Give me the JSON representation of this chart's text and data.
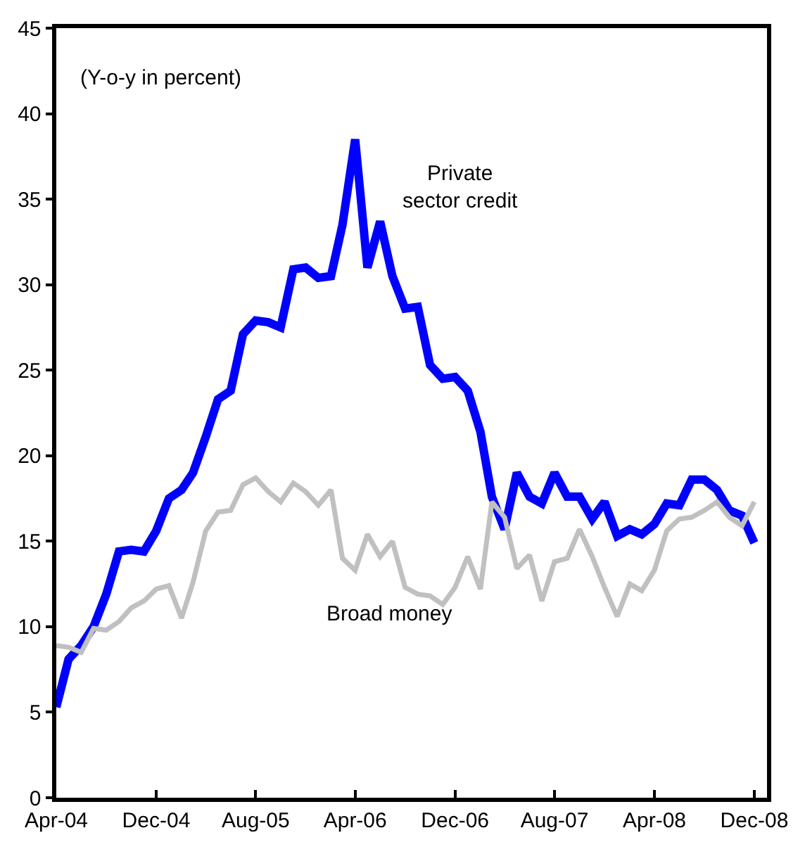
{
  "chart_data": {
    "type": "line",
    "x": [
      "2004-04",
      "2004-05",
      "2004-06",
      "2004-07",
      "2004-08",
      "2004-09",
      "2004-10",
      "2004-11",
      "2004-12",
      "2005-01",
      "2005-02",
      "2005-03",
      "2005-04",
      "2005-05",
      "2005-06",
      "2005-07",
      "2005-08",
      "2005-09",
      "2005-10",
      "2005-11",
      "2005-12",
      "2006-01",
      "2006-02",
      "2006-03",
      "2006-04",
      "2006-05",
      "2006-06",
      "2006-07",
      "2006-08",
      "2006-09",
      "2006-10",
      "2006-11",
      "2006-12",
      "2007-01",
      "2007-02",
      "2007-03",
      "2007-04",
      "2007-05",
      "2007-06",
      "2007-07",
      "2007-08",
      "2007-09",
      "2007-10",
      "2007-11",
      "2007-12",
      "2008-01",
      "2008-02",
      "2008-03",
      "2008-04",
      "2008-05",
      "2008-06",
      "2008-07",
      "2008-08",
      "2008-09",
      "2008-10",
      "2008-11",
      "2008-12"
    ],
    "series": [
      {
        "name": "Private sector credit",
        "color": "#0000ff",
        "values": [
          5.3,
          8.1,
          8.9,
          10.0,
          11.9,
          14.4,
          14.5,
          14.4,
          15.6,
          17.5,
          18.0,
          19.0,
          21.1,
          23.3,
          23.8,
          27.1,
          27.9,
          27.8,
          27.5,
          30.9,
          31.0,
          30.4,
          30.5,
          33.5,
          38.5,
          31.0,
          33.7,
          30.5,
          28.6,
          28.7,
          25.3,
          24.5,
          24.6,
          23.8,
          21.4,
          17.6,
          15.7,
          19.0,
          17.6,
          17.2,
          19.0,
          17.6,
          17.6,
          16.3,
          17.3,
          15.3,
          15.7,
          15.4,
          16.0,
          17.2,
          17.1,
          18.6,
          18.6,
          18.0,
          16.8,
          16.5,
          14.9
        ]
      },
      {
        "name": "Broad money",
        "color": "#c0c0c0",
        "values": [
          8.9,
          8.8,
          8.5,
          9.9,
          9.8,
          10.3,
          11.1,
          11.5,
          12.2,
          12.4,
          10.5,
          12.6,
          15.6,
          16.7,
          16.8,
          18.3,
          18.7,
          17.9,
          17.3,
          18.4,
          17.9,
          17.1,
          18.0,
          14.0,
          13.3,
          15.4,
          14.1,
          15.0,
          12.3,
          11.9,
          11.8,
          11.3,
          12.3,
          14.1,
          12.2,
          17.3,
          16.4,
          13.4,
          14.2,
          11.5,
          13.8,
          14.0,
          15.7,
          14.1,
          12.3,
          10.6,
          12.5,
          12.1,
          13.3,
          15.6,
          16.3,
          16.4,
          16.8,
          17.3,
          16.4,
          15.9,
          17.3
        ]
      }
    ],
    "annotations": [
      "(Y-o-y in percent)"
    ],
    "xlim": [
      "2004-04",
      "2009-01"
    ],
    "xticks": [
      {
        "value": "2004-04",
        "label": "Apr-04"
      },
      {
        "value": "2004-12",
        "label": "Dec-04"
      },
      {
        "value": "2005-08",
        "label": "Aug-05"
      },
      {
        "value": "2006-04",
        "label": "Apr-06"
      },
      {
        "value": "2006-12",
        "label": "Dec-06"
      },
      {
        "value": "2007-08",
        "label": "Aug-07"
      },
      {
        "value": "2008-04",
        "label": "Apr-08"
      },
      {
        "value": "2008-12",
        "label": "Dec-08"
      }
    ],
    "ylim": [
      0,
      45
    ],
    "yticks": [
      0,
      5,
      10,
      15,
      20,
      25,
      30,
      35,
      40,
      45
    ],
    "legend": false,
    "marker": "none",
    "line_style": "solid"
  }
}
